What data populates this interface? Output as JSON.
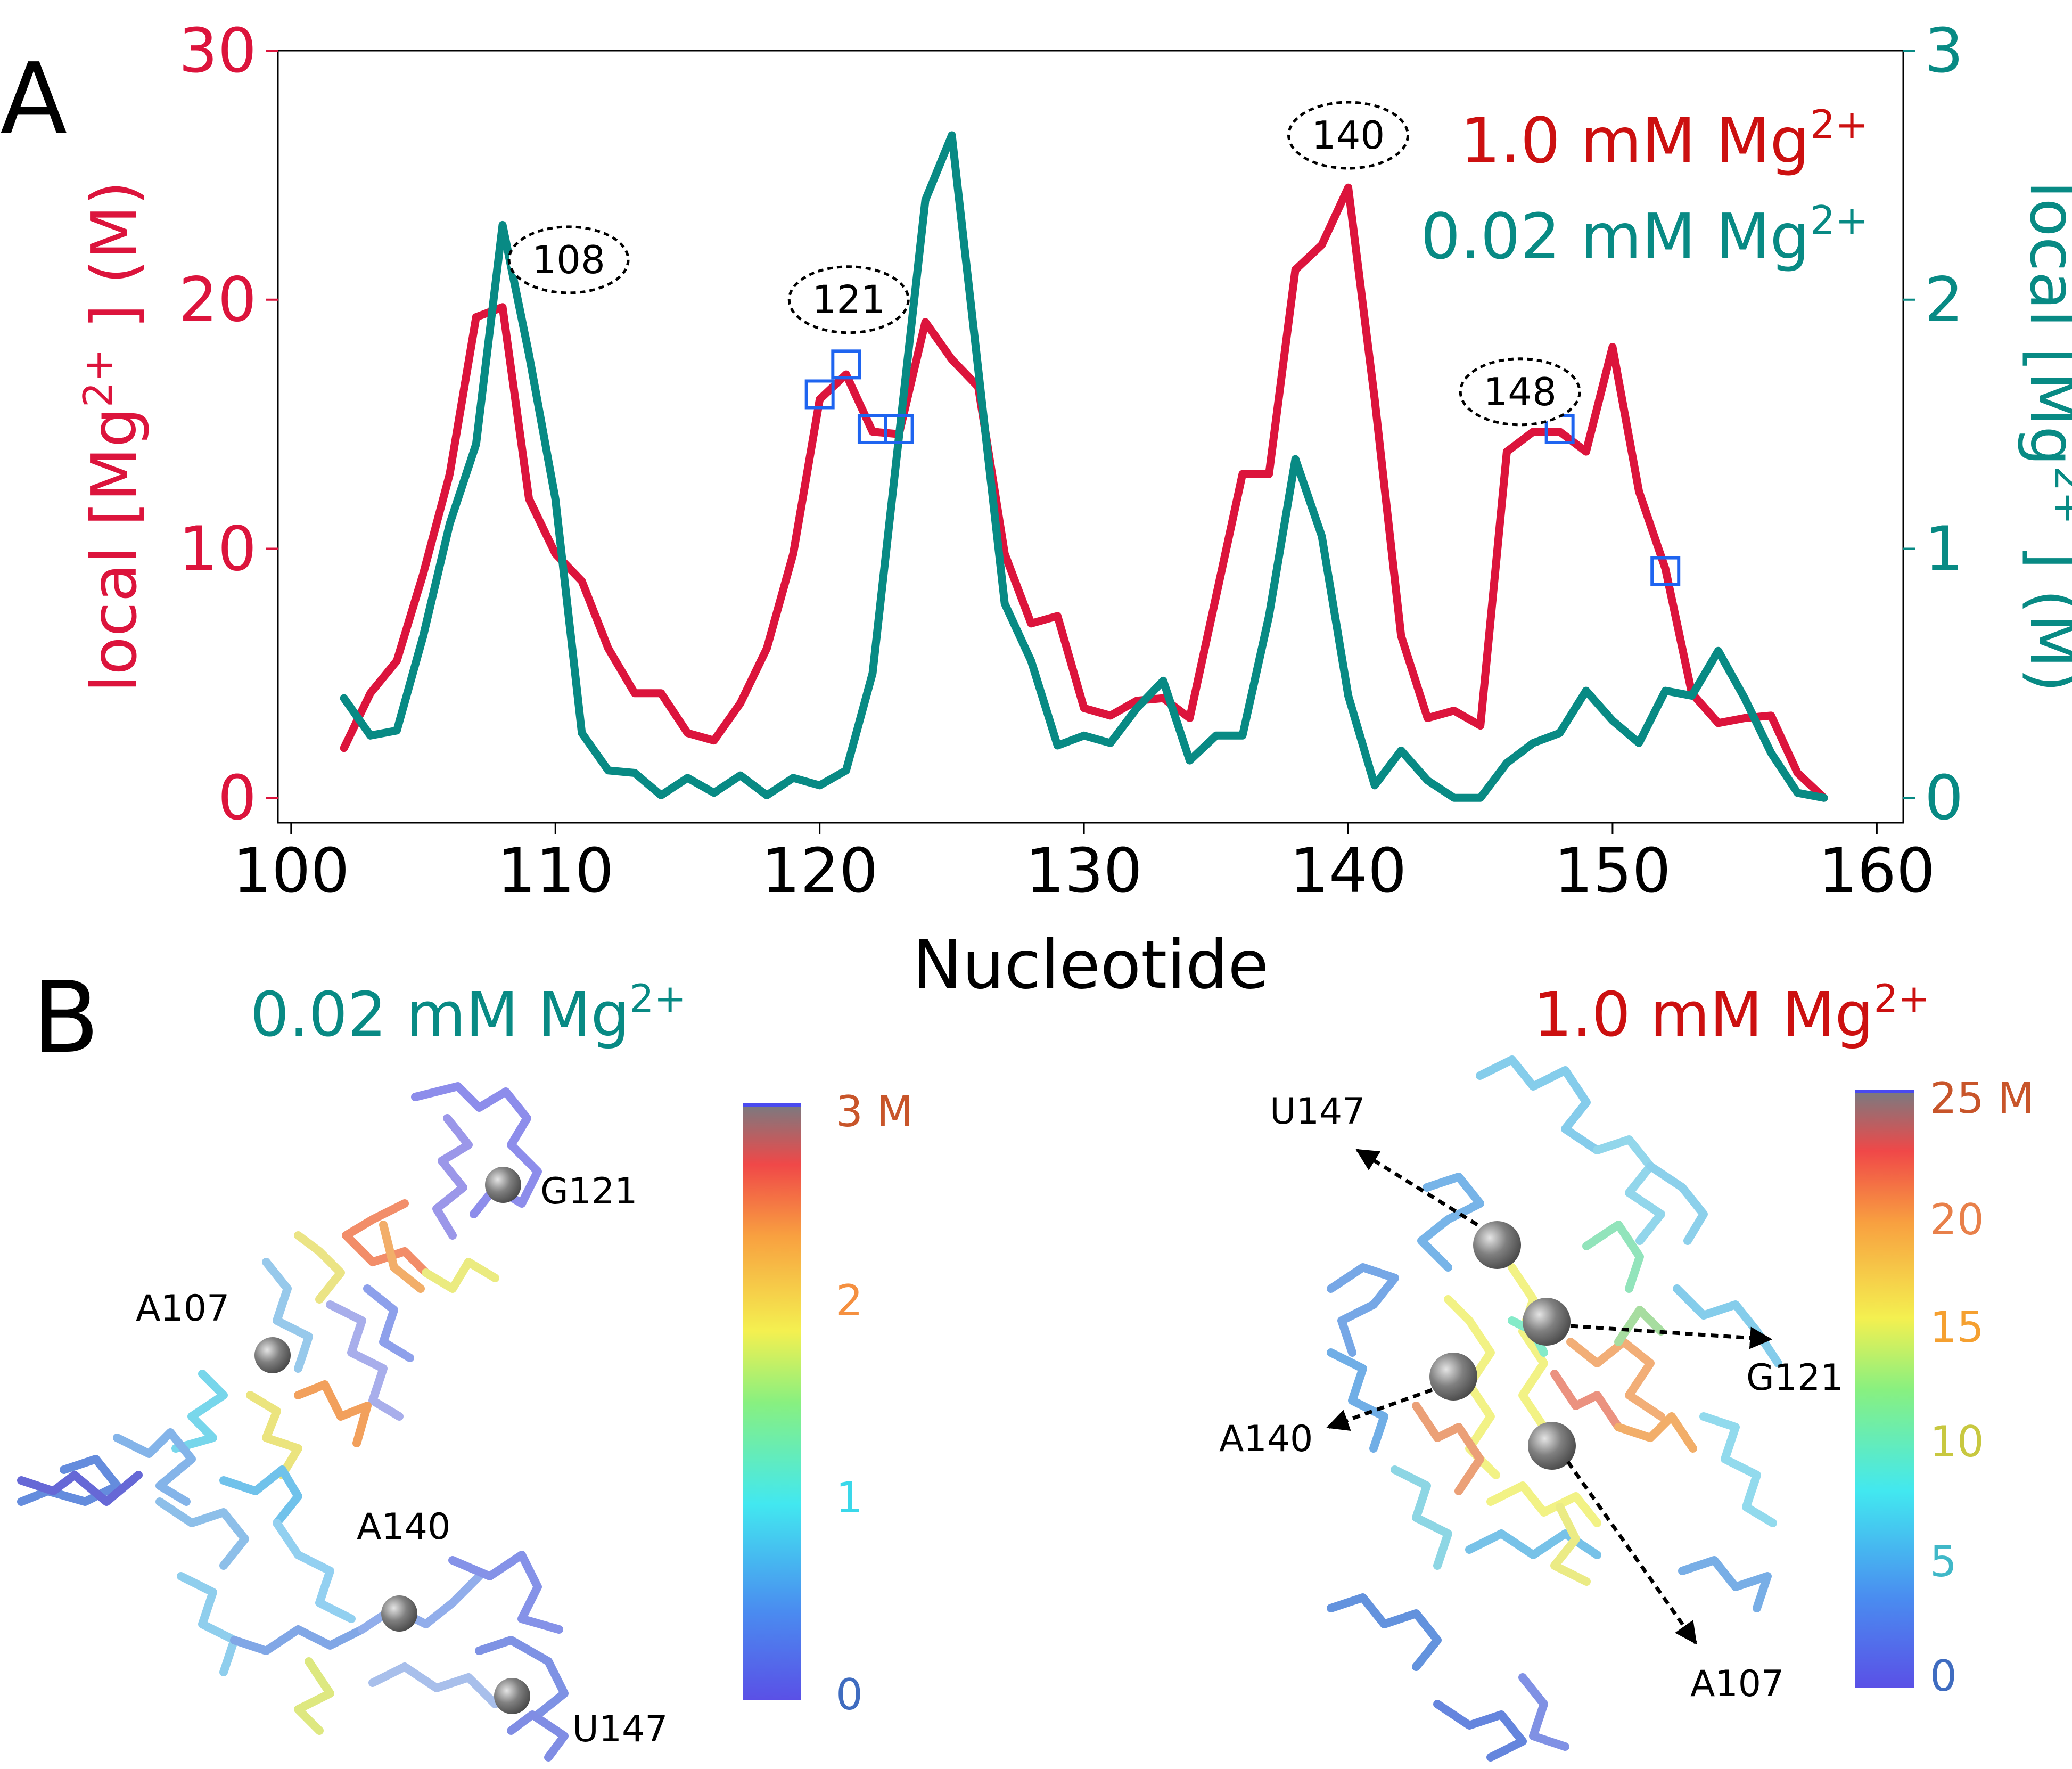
{
  "panel_a_label": "A",
  "panel_b_label": "B",
  "colors": {
    "high_mg": "#dc143c",
    "low_mg": "#088a84",
    "marker": "#1e64f0",
    "annotation": "#000000"
  },
  "chart_data": {
    "type": "line",
    "title": "",
    "xlabel": "Nucleotide",
    "ylabel_left": "local [Mg2+] (M)",
    "ylabel_right": "local [Mg2+] (M)",
    "xlim": [
      99.5,
      161
    ],
    "ylim_left": [
      -1,
      30
    ],
    "ylim_right": [
      -0.1,
      3
    ],
    "x_ticks": [
      100,
      110,
      120,
      130,
      140,
      150,
      160
    ],
    "y_ticks_left": [
      0,
      10,
      20,
      30
    ],
    "y_ticks_right": [
      0,
      1,
      2,
      3
    ],
    "legend_position": "top-right",
    "legend": [
      {
        "series": "high",
        "text": "1.0 mM Mg",
        "sup": "2+"
      },
      {
        "series": "low",
        "text": "0.02 mM Mg",
        "sup": "2+"
      }
    ],
    "x": [
      102,
      103,
      104,
      105,
      106,
      107,
      108,
      109,
      110,
      111,
      112,
      113,
      114,
      115,
      116,
      117,
      118,
      119,
      120,
      121,
      122,
      123,
      124,
      125,
      126,
      127,
      128,
      129,
      130,
      131,
      132,
      133,
      134,
      135,
      136,
      137,
      138,
      139,
      140,
      141,
      142,
      143,
      144,
      145,
      146,
      147,
      148,
      149,
      150,
      151,
      152,
      153,
      154,
      155,
      156,
      157,
      158
    ],
    "series": [
      {
        "key": "high",
        "axis": "left",
        "values": [
          2.0,
          4.2,
          5.5,
          9.0,
          13.0,
          19.3,
          19.7,
          12.0,
          9.8,
          8.7,
          6.0,
          4.2,
          4.2,
          2.6,
          2.3,
          3.8,
          6.0,
          9.8,
          16.0,
          17.0,
          14.7,
          14.6,
          19.1,
          17.6,
          16.5,
          9.8,
          7.0,
          7.3,
          3.6,
          3.3,
          3.9,
          4.0,
          3.2,
          8.1,
          13.0,
          13.0,
          21.2,
          22.2,
          24.5,
          16.0,
          6.5,
          3.2,
          3.5,
          2.9,
          13.9,
          14.7,
          14.7,
          13.9,
          18.1,
          12.3,
          9.2,
          4.2,
          3.0,
          3.2,
          3.3,
          1.0,
          0.0
        ]
      },
      {
        "key": "low",
        "axis": "right",
        "values": [
          0.4,
          0.25,
          0.27,
          0.65,
          1.1,
          1.42,
          2.3,
          1.78,
          1.2,
          0.26,
          0.11,
          0.1,
          0.01,
          0.08,
          0.02,
          0.09,
          0.01,
          0.08,
          0.05,
          0.11,
          0.5,
          1.45,
          2.4,
          2.66,
          1.72,
          0.78,
          0.55,
          0.21,
          0.25,
          0.22,
          0.36,
          0.47,
          0.15,
          0.25,
          0.25,
          0.73,
          1.36,
          1.05,
          0.41,
          0.05,
          0.19,
          0.07,
          0.0,
          0.0,
          0.14,
          0.22,
          0.26,
          0.43,
          0.31,
          0.22,
          0.43,
          0.41,
          0.59,
          0.4,
          0.18,
          0.02,
          0.0
        ]
      }
    ],
    "markers": [
      {
        "x": 120,
        "y": 16.2
      },
      {
        "x": 121,
        "y": 17.4
      },
      {
        "x": 122,
        "y": 14.8
      },
      {
        "x": 123,
        "y": 14.8
      },
      {
        "x": 148,
        "y": 14.8
      },
      {
        "x": 152,
        "y": 9.1
      }
    ],
    "annotations": [
      {
        "label": "108",
        "x": 110.5,
        "y": 21.6
      },
      {
        "label": "121",
        "x": 121.1,
        "y": 20.0
      },
      {
        "label": "140",
        "x": 140.0,
        "y": 26.6
      },
      {
        "label": "148",
        "x": 146.5,
        "y": 16.3
      }
    ]
  },
  "panel_b": {
    "left": {
      "title": "0.02 mM Mg",
      "title_sup": "2+",
      "colorbar_ticks": [
        "3 M",
        "2",
        "1",
        "0"
      ],
      "residue_labels": [
        "G121",
        "A107",
        "A140",
        "U147"
      ]
    },
    "right": {
      "title": "1.0 mM Mg",
      "title_sup": "2+",
      "colorbar_ticks": [
        "25 M",
        "20",
        "15",
        "10",
        "5",
        "0"
      ],
      "residue_labels": [
        "U147",
        "G121",
        "A140",
        "A107"
      ]
    }
  }
}
